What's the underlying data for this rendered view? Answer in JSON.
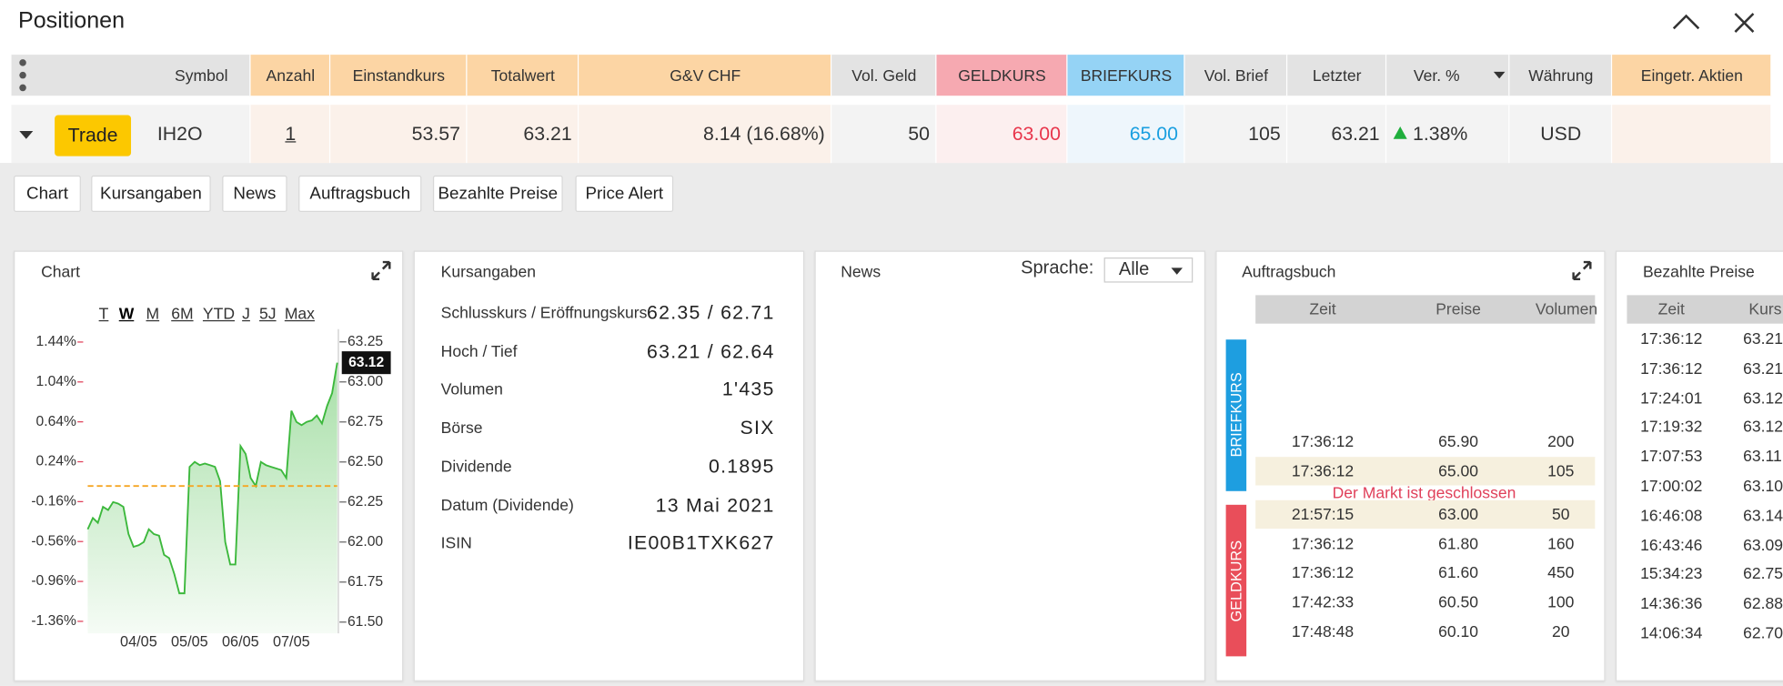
{
  "header": {
    "title": "Positionen"
  },
  "table": {
    "columns": [
      "Symbol",
      "Anzahl",
      "Einstandkurs",
      "Totalwert",
      "G&V CHF",
      "Vol. Geld",
      "GELDKURS",
      "BRIEFKURS",
      "Vol. Brief",
      "Letzter",
      "Ver. %",
      "Währung",
      "Eingetr. Aktien"
    ],
    "row": {
      "action": "Trade",
      "cells": [
        "IH2O",
        "1",
        "53.57",
        "63.21",
        "8.14 (16.68%)",
        "50",
        "63.00",
        "65.00",
        "105",
        "63.21",
        "1.38%",
        "USD"
      ]
    }
  },
  "tabs": [
    "Chart",
    "Kursangaben",
    "News",
    "Auftragsbuch",
    "Bezahlte Preise",
    "Price Alert"
  ],
  "chart_panel": {
    "title": "Chart",
    "periods": [
      "T",
      "W",
      "M",
      "6M",
      "YTD",
      "J",
      "5J",
      "Max"
    ],
    "selected_period": "W"
  },
  "chart_data": {
    "type": "line",
    "categories": [
      null,
      null,
      null,
      null,
      null,
      null,
      null,
      null,
      null,
      null,
      "04/05",
      null,
      null,
      null,
      null,
      null,
      null,
      null,
      null,
      null,
      "05/05",
      null,
      null,
      null,
      null,
      null,
      null,
      null,
      null,
      null,
      "06/05",
      null,
      null,
      null,
      null,
      null,
      null,
      null,
      null,
      null,
      "07/05",
      null,
      null,
      null,
      null,
      null,
      null,
      null,
      null,
      null
    ],
    "series": [
      {
        "color": "#3cb83c",
        "values": [
          62.08,
          62.15,
          62.12,
          62.22,
          62.2,
          62.25,
          62.24,
          62.22,
          62.05,
          61.97,
          61.98,
          62.0,
          62.08,
          62.05,
          62.04,
          61.92,
          61.9,
          61.8,
          61.68,
          61.68,
          62.47,
          62.5,
          62.48,
          62.49,
          62.48,
          62.47,
          62.38,
          62.0,
          61.86,
          61.86,
          62.6,
          62.55,
          62.4,
          62.35,
          62.5,
          62.48,
          62.47,
          62.46,
          62.45,
          62.4,
          62.82,
          62.75,
          62.73,
          62.75,
          62.76,
          62.79,
          62.74,
          62.85,
          62.93,
          63.12
        ]
      }
    ],
    "ylim": [
      61.43,
      63.33
    ],
    "yticks": [
      63.25,
      {
        "value": 63,
        "label": "63.00"
      },
      62.75,
      {
        "value": 62.5,
        "label": "62.50"
      },
      62.25,
      {
        "value": 62,
        "label": "62.00"
      },
      61.75,
      {
        "value": 61.5,
        "label": "61.50"
      }
    ],
    "y2lim": [
      -1.48,
      1.57
    ],
    "y2ticks": [
      {
        "value": 1.44,
        "label": "1.44%"
      },
      {
        "value": 1.04,
        "label": "1.04%"
      },
      {
        "value": 0.64,
        "label": "0.64%"
      },
      {
        "value": 0.24,
        "label": "0.24%"
      },
      {
        "value": -0.16,
        "label": "-0.16%"
      },
      {
        "value": -0.56,
        "label": "-0.56%"
      },
      {
        "value": -0.96,
        "label": "-0.96%"
      },
      {
        "value": -1.36,
        "label": "-1.36%"
      }
    ],
    "reference_line": 62.35,
    "reference_color": "#f5a623"
  },
  "kursangaben": {
    "title": "Kursangaben",
    "rows": [
      [
        "Schlusskurs / Eröffnungskurs",
        "62.35 / 62.71"
      ],
      [
        "Hoch / Tief",
        "63.21 / 62.64"
      ],
      [
        "Volumen",
        "1'435"
      ],
      [
        "Börse",
        "SIX"
      ],
      [
        "Dividende",
        "0.1895"
      ],
      [
        "Datum (Dividende)",
        "13 Mai 2021"
      ],
      [
        "ISIN",
        "IE00B1TXK627"
      ]
    ]
  },
  "news": {
    "title": "News",
    "language_label": "Sprache:",
    "language": "Alle"
  },
  "auftragsbuch": {
    "title": "Auftragsbuch",
    "columns": [
      "Zeit",
      "Preise",
      "Volumen"
    ],
    "ask_label": "BRIEFKURS",
    "bid_label": "GELDKURS",
    "ask_rows": [
      [
        "17:36:12",
        "65.90",
        "200"
      ],
      [
        "17:36:12",
        "65.00",
        "105"
      ]
    ],
    "notice": "Der Markt ist geschlossen",
    "bid_rows": [
      [
        "21:57:15",
        "63.00",
        "50"
      ],
      [
        "17:36:12",
        "61.80",
        "160"
      ],
      [
        "17:36:12",
        "61.60",
        "450"
      ],
      [
        "17:42:33",
        "60.50",
        "100"
      ],
      [
        "17:48:48",
        "60.10",
        "20"
      ]
    ]
  },
  "bezahlte_preise": {
    "title": "Bezahlte Preise",
    "columns": [
      "Zeit",
      "Kurs"
    ],
    "rows": [
      [
        "17:36:12",
        "63.21"
      ],
      [
        "17:36:12",
        "63.21"
      ],
      [
        "17:24:01",
        "63.12"
      ],
      [
        "17:19:32",
        "63.12"
      ],
      [
        "17:07:53",
        "63.11"
      ],
      [
        "17:00:02",
        "63.10"
      ],
      [
        "16:46:08",
        "63.14"
      ],
      [
        "16:43:46",
        "63.09"
      ],
      [
        "15:34:23",
        "62.75"
      ],
      [
        "14:36:36",
        "62.88"
      ],
      [
        "14:06:34",
        "62.70"
      ]
    ]
  }
}
